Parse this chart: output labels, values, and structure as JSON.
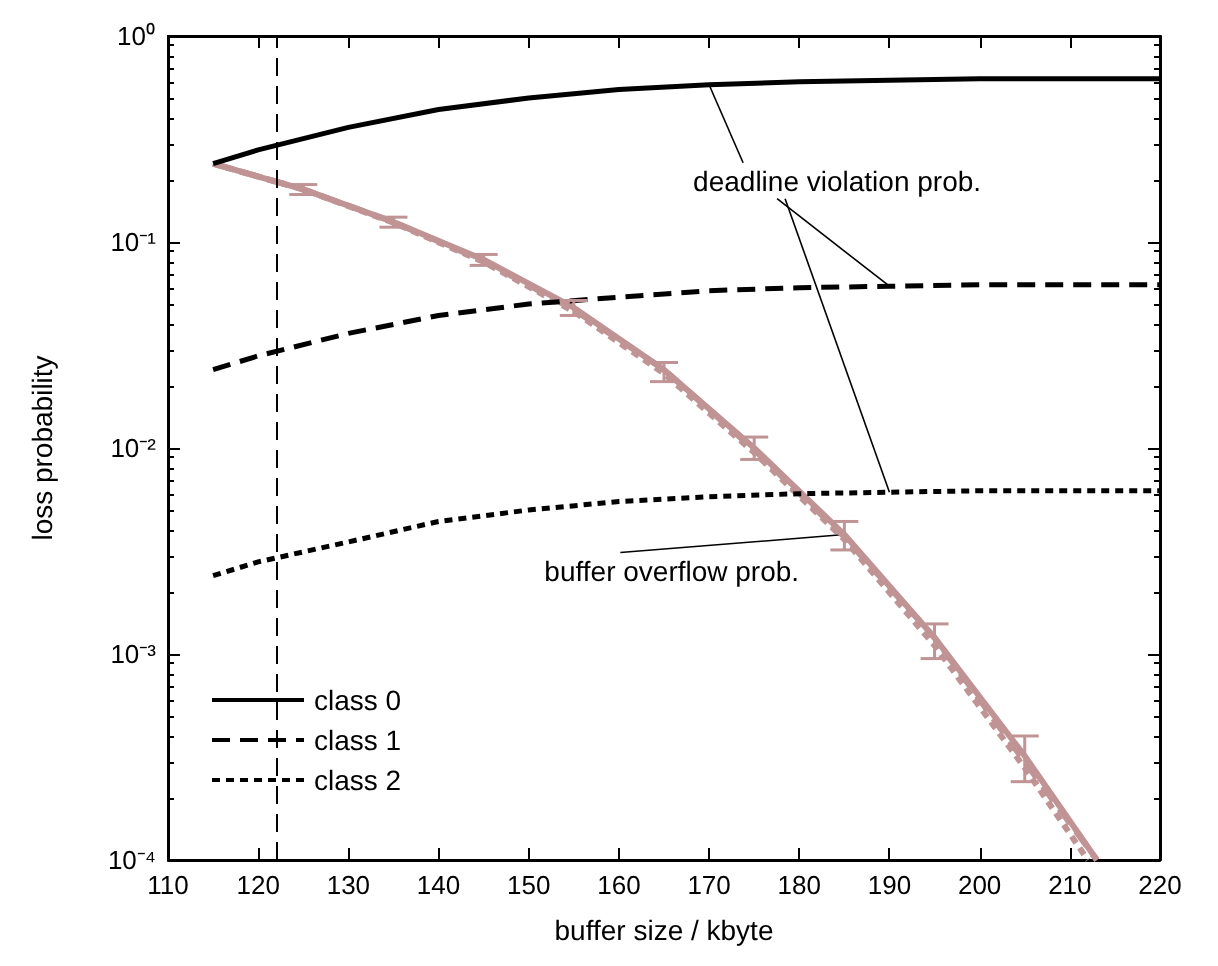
{
  "chart_data": {
    "type": "line",
    "xlabel": "buffer size / kbyte",
    "ylabel": "loss probability",
    "xlim": [
      110,
      220
    ],
    "xticks": [
      110,
      120,
      130,
      140,
      150,
      160,
      170,
      180,
      190,
      200,
      210,
      220
    ],
    "ylim": [
      0.0001,
      1
    ],
    "yticks": [
      {
        "value": 0.0001,
        "label": "10⁻⁴"
      },
      {
        "value": 0.001,
        "label": "10⁻³"
      },
      {
        "value": 0.01,
        "label": "10⁻²"
      },
      {
        "value": 0.1,
        "label": "10⁻¹"
      },
      {
        "value": 1,
        "label": "10⁰"
      }
    ],
    "log": "y",
    "grid": false,
    "legend": "bottom left",
    "marker": "none",
    "series": [
      {
        "name": "class 0",
        "color": "#000000",
        "line_style": "solid",
        "x": [
          115,
          120,
          130,
          140,
          150,
          160,
          170,
          180,
          190,
          200,
          210,
          220
        ],
        "values": [
          0.24,
          0.28,
          0.36,
          0.44,
          0.5,
          0.55,
          0.58,
          0.6,
          0.61,
          0.62,
          0.62,
          0.62
        ]
      },
      {
        "name": "class 1",
        "color": "#000000",
        "line_style": "dashed",
        "x": [
          115,
          120,
          130,
          140,
          150,
          160,
          170,
          180,
          190,
          200,
          210,
          220
        ],
        "values": [
          0.024,
          0.028,
          0.036,
          0.044,
          0.05,
          0.054,
          0.058,
          0.06,
          0.061,
          0.062,
          0.062,
          0.062
        ]
      },
      {
        "name": "class 2",
        "color": "#000000",
        "line_style": "dotted",
        "x": [
          115,
          120,
          130,
          140,
          150,
          160,
          170,
          180,
          190,
          200,
          210,
          220
        ],
        "values": [
          0.0024,
          0.0028,
          0.0035,
          0.0044,
          0.005,
          0.0055,
          0.0058,
          0.006,
          0.0061,
          0.0062,
          0.0062,
          0.0062
        ]
      },
      {
        "color": "#c09494",
        "line_style": "solid",
        "x": [
          115,
          125,
          135,
          145,
          155,
          165,
          175,
          185,
          195,
          205,
          213
        ],
        "values": [
          0.24,
          0.18,
          0.125,
          0.082,
          0.048,
          0.024,
          0.01,
          0.0038,
          0.0012,
          0.00032,
          0.0001
        ],
        "errors": [
          null,
          [
            0.17,
            0.19
          ],
          [
            0.118,
            0.132
          ],
          [
            0.077,
            0.087
          ],
          [
            0.044,
            0.052
          ],
          [
            0.021,
            0.026
          ],
          [
            0.0088,
            0.0113
          ],
          [
            0.0032,
            0.0044
          ],
          [
            0.00095,
            0.0014
          ],
          [
            0.00024,
            0.0004
          ],
          null
        ]
      },
      {
        "color": "#c09494",
        "line_style": "dashed",
        "x": [
          115,
          125,
          135,
          145,
          155,
          165,
          175,
          185,
          195,
          205,
          213
        ],
        "values": [
          0.24,
          0.18,
          0.125,
          0.081,
          0.047,
          0.024,
          0.0098,
          0.0037,
          0.0012,
          0.0003,
          0.0001
        ]
      },
      {
        "color": "#c09494",
        "line_style": "dotted",
        "x": [
          115,
          125,
          135,
          145,
          155,
          165,
          175,
          185,
          195,
          205,
          212
        ],
        "values": [
          0.24,
          0.18,
          0.124,
          0.08,
          0.046,
          0.023,
          0.0095,
          0.0036,
          0.0011,
          0.00028,
          0.0001
        ]
      }
    ],
    "ref_lines": [
      {
        "axis": "x",
        "value": 122,
        "color": "#000000",
        "line_style": "dashed"
      }
    ],
    "annotations": [
      {
        "text": "deadline violation prob.",
        "x": 170,
        "y": 0.58
      },
      {
        "text": "buffer overflow prob.",
        "x": 185,
        "y": 0.0038
      }
    ]
  }
}
